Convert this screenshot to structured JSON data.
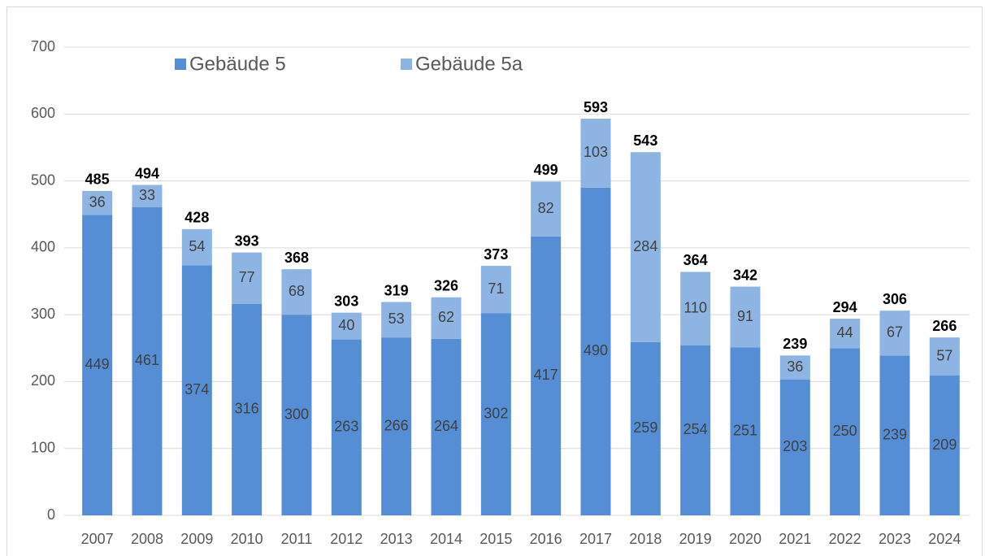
{
  "chart_data": {
    "type": "stacked_bar",
    "categories": [
      "2007",
      "2008",
      "2009",
      "2010",
      "2011",
      "2012",
      "2013",
      "2014",
      "2015",
      "2016",
      "2017",
      "2018",
      "2019",
      "2020",
      "2021",
      "2022",
      "2023",
      "2024"
    ],
    "series": [
      {
        "name": "Gebäude 5",
        "color": "#558ed5",
        "values": [
          449,
          461,
          374,
          316,
          300,
          263,
          266,
          264,
          302,
          417,
          490,
          259,
          254,
          251,
          203,
          250,
          239,
          209
        ]
      },
      {
        "name": "Gebäude 5a",
        "color": "#8db4e2",
        "values": [
          36,
          33,
          54,
          77,
          68,
          40,
          53,
          62,
          71,
          82,
          103,
          284,
          110,
          91,
          36,
          44,
          67,
          57
        ]
      }
    ],
    "totals": [
      485,
      494,
      428,
      393,
      368,
      303,
      319,
      326,
      373,
      499,
      593,
      543,
      364,
      342,
      239,
      294,
      306,
      266
    ],
    "ylim": [
      0,
      700
    ],
    "yticks": [
      0,
      100,
      200,
      300,
      400,
      500,
      600,
      700
    ],
    "grid": true,
    "legend": "top"
  }
}
